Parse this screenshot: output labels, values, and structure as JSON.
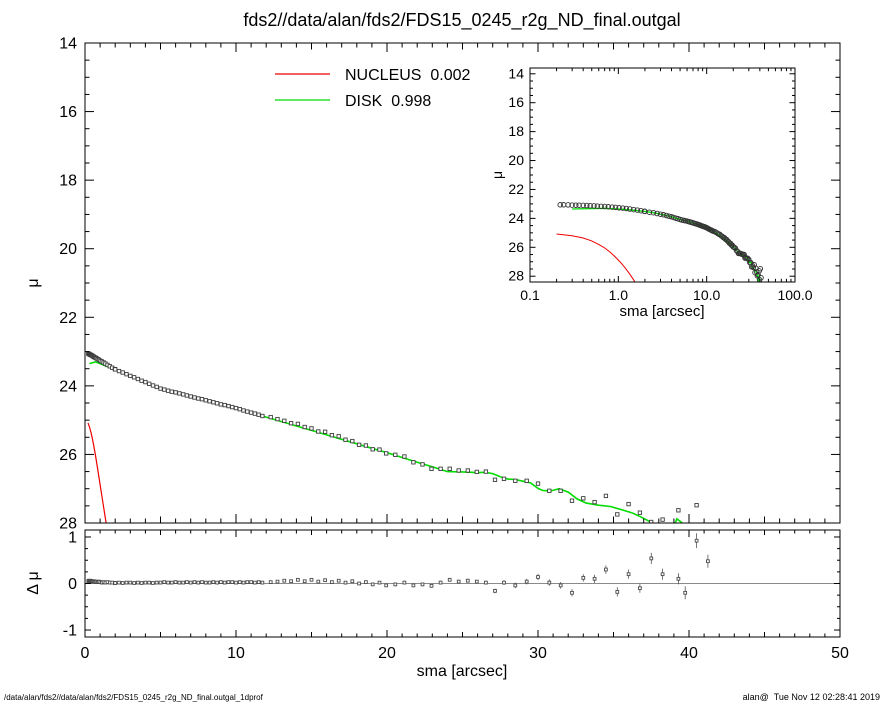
{
  "title": "fds2//data/alan/fds2/FDS15_0245_r2g_ND_final.outgal",
  "footer": {
    "left": "/data/alan/fds2//data/alan/fds2/FDS15_0245_r2g_ND_final.outgal_1dprof",
    "right": "alan@  Tue Nov 12 02:28:41 2019"
  },
  "colors": {
    "nucleus": "#ee0000",
    "disk": "#00dc00",
    "data_marker": "#3d3d3d",
    "residual_marker": "#4a4a4a",
    "axis": "#000000",
    "zero_line": "#8a8a8a"
  },
  "legend": {
    "nucleus": {
      "label": "NUCLEUS  0.002"
    },
    "disk": {
      "label": "DISK  0.998"
    }
  },
  "chart_data": {
    "type": "scatter",
    "title": "fds2//data/alan/fds2/FDS15_0245_r2g_ND_final.outgal",
    "panels": {
      "main": {
        "xlabel": "",
        "ylabel": "μ",
        "xlim": [
          0,
          50
        ],
        "ylim_top_bottom": [
          14,
          28
        ],
        "xticks": {
          "major": [
            0,
            10,
            20,
            30,
            40,
            50
          ],
          "mid_step": 5,
          "minor_step": 1,
          "show_labels": false
        },
        "yticks": {
          "major": [
            14,
            16,
            18,
            20,
            22,
            24,
            26,
            28
          ],
          "labels": [
            "14",
            "16",
            "18",
            "20",
            "22",
            "24",
            "26",
            "28"
          ],
          "minor_step": 0.5
        }
      },
      "inset": {
        "xlabel": "sma [arcsec]",
        "ylabel": "μ",
        "xscale": "log",
        "xlim": [
          0.1,
          100
        ],
        "ylim_top_bottom": [
          13.6,
          28.4
        ],
        "xticks": {
          "major": [
            0.1,
            1,
            10,
            100
          ],
          "labels": [
            "0.1",
            "1.0",
            "10.0",
            "100.0"
          ]
        },
        "yticks": {
          "major": [
            14,
            16,
            18,
            20,
            22,
            24,
            26,
            28
          ],
          "labels": [
            "14",
            "16",
            "18",
            "20",
            "22",
            "24",
            "26",
            "28"
          ],
          "minor_step": 0.5
        }
      },
      "residual": {
        "xlabel": "sma [arcsec]",
        "ylabel": "Δ μ",
        "xlim": [
          0,
          50
        ],
        "ylim_top_bottom": [
          1.15,
          -1.15
        ],
        "xticks": {
          "major": [
            0,
            10,
            20,
            30,
            40,
            50
          ],
          "labels": [
            "0",
            "10",
            "20",
            "30",
            "40",
            "50"
          ],
          "mid_step": 5,
          "minor_step": 1,
          "show_labels": true
        },
        "yticks": {
          "major": [
            1,
            0,
            -1
          ],
          "labels": [
            "1",
            "0",
            "-1"
          ],
          "minor_step": 0.25
        },
        "zero_line": 0
      }
    },
    "profile_points": [
      [
        0.22,
        23.06
      ],
      [
        0.24,
        23.06
      ],
      [
        0.27,
        23.07
      ],
      [
        0.3,
        23.08
      ],
      [
        0.33,
        23.09
      ],
      [
        0.36,
        23.09
      ],
      [
        0.4,
        23.1
      ],
      [
        0.44,
        23.11
      ],
      [
        0.48,
        23.12
      ],
      [
        0.53,
        23.14
      ],
      [
        0.58,
        23.15
      ],
      [
        0.64,
        23.17
      ],
      [
        0.7,
        23.18
      ],
      [
        0.77,
        23.2
      ],
      [
        0.85,
        23.22
      ],
      [
        0.93,
        23.24
      ],
      [
        1.02,
        23.27
      ],
      [
        1.12,
        23.29
      ],
      [
        1.23,
        23.32
      ],
      [
        1.35,
        23.35
      ],
      [
        1.49,
        23.39
      ],
      [
        1.64,
        23.43
      ],
      [
        1.8,
        23.47
      ],
      [
        1.98,
        23.51
      ],
      [
        2.0,
        23.52
      ],
      [
        2.25,
        23.57
      ],
      [
        2.5,
        23.61
      ],
      [
        2.75,
        23.66
      ],
      [
        3.0,
        23.71
      ],
      [
        3.25,
        23.75
      ],
      [
        3.5,
        23.8
      ],
      [
        3.75,
        23.85
      ],
      [
        4.0,
        23.89
      ],
      [
        4.25,
        23.94
      ],
      [
        4.5,
        23.99
      ],
      [
        4.75,
        24.03
      ],
      [
        5.0,
        24.08
      ],
      [
        5.25,
        24.11
      ],
      [
        5.5,
        24.14
      ],
      [
        5.75,
        24.17
      ],
      [
        6.0,
        24.19
      ],
      [
        6.25,
        24.22
      ],
      [
        6.5,
        24.25
      ],
      [
        6.75,
        24.28
      ],
      [
        7.0,
        24.31
      ],
      [
        7.25,
        24.34
      ],
      [
        7.5,
        24.37
      ],
      [
        7.75,
        24.39
      ],
      [
        8.0,
        24.42
      ],
      [
        8.25,
        24.45
      ],
      [
        8.5,
        24.48
      ],
      [
        8.75,
        24.51
      ],
      [
        9.0,
        24.54
      ],
      [
        9.25,
        24.56
      ],
      [
        9.5,
        24.59
      ],
      [
        9.75,
        24.62
      ],
      [
        10.0,
        24.65
      ],
      [
        10.25,
        24.68
      ],
      [
        10.5,
        24.72
      ],
      [
        10.75,
        24.75
      ],
      [
        11.0,
        24.78
      ],
      [
        11.25,
        24.81
      ],
      [
        11.5,
        24.84
      ],
      [
        11.75,
        24.88
      ],
      [
        12.3,
        24.91
      ],
      [
        12.75,
        24.97
      ],
      [
        13.2,
        25.02
      ],
      [
        13.65,
        25.09
      ],
      [
        14.1,
        25.11
      ],
      [
        14.55,
        25.2
      ],
      [
        15.0,
        25.24
      ],
      [
        15.45,
        25.33
      ],
      [
        15.9,
        25.34
      ],
      [
        16.35,
        25.44
      ],
      [
        16.8,
        25.47
      ],
      [
        17.25,
        25.57
      ],
      [
        17.7,
        25.61
      ],
      [
        18.15,
        25.72
      ],
      [
        18.6,
        25.74
      ],
      [
        19.05,
        25.85
      ],
      [
        19.5,
        25.86
      ],
      [
        19.95,
        25.97
      ],
      [
        20.55,
        26.01
      ],
      [
        21.15,
        26.06
      ],
      [
        21.75,
        26.23
      ],
      [
        22.35,
        26.29
      ],
      [
        22.95,
        26.42
      ],
      [
        23.55,
        26.42
      ],
      [
        24.15,
        26.42
      ],
      [
        24.75,
        26.47
      ],
      [
        25.35,
        26.47
      ],
      [
        25.95,
        26.51
      ],
      [
        26.55,
        26.5
      ],
      [
        27.15,
        26.74
      ],
      [
        27.75,
        26.71
      ],
      [
        28.5,
        26.77
      ],
      [
        29.25,
        26.77
      ],
      [
        30.0,
        26.85
      ],
      [
        30.75,
        27.06
      ],
      [
        31.5,
        27.06
      ],
      [
        32.25,
        27.35
      ],
      [
        33.0,
        27.28
      ],
      [
        33.75,
        27.39
      ],
      [
        34.5,
        27.21
      ],
      [
        35.25,
        27.75
      ],
      [
        36.0,
        27.45
      ],
      [
        36.75,
        27.7
      ],
      [
        37.5,
        27.97
      ],
      [
        38.25,
        27.9
      ],
      [
        39.3,
        27.63
      ],
      [
        39.75,
        28.25
      ],
      [
        40.5,
        27.48
      ],
      [
        41.25,
        28.1
      ]
    ],
    "disk_model": [
      [
        0.3,
        23.35
      ],
      [
        0.7,
        23.3
      ],
      [
        1.1,
        23.37
      ],
      [
        1.5,
        23.44
      ],
      [
        2.0,
        23.52
      ],
      [
        2.5,
        23.61
      ],
      [
        3.0,
        23.71
      ],
      [
        3.5,
        23.8
      ],
      [
        4.0,
        23.89
      ],
      [
        4.5,
        23.99
      ],
      [
        5.0,
        24.08
      ],
      [
        6.0,
        24.19
      ],
      [
        7.0,
        24.31
      ],
      [
        8.0,
        24.42
      ],
      [
        9.0,
        24.54
      ],
      [
        10.0,
        24.65
      ],
      [
        11.0,
        24.78
      ],
      [
        12.0,
        24.91
      ],
      [
        13.0,
        25.04
      ],
      [
        14.0,
        25.17
      ],
      [
        15.0,
        25.3
      ],
      [
        16.0,
        25.43
      ],
      [
        17.0,
        25.56
      ],
      [
        18.0,
        25.69
      ],
      [
        19.0,
        25.82
      ],
      [
        20.0,
        25.95
      ],
      [
        21.0,
        26.09
      ],
      [
        22.0,
        26.23
      ],
      [
        23.0,
        26.36
      ],
      [
        24.0,
        26.5
      ],
      [
        25.0,
        26.51
      ],
      [
        26.0,
        26.53
      ],
      [
        26.5,
        26.52
      ],
      [
        27.0,
        26.56
      ],
      [
        27.5,
        26.65
      ],
      [
        28.0,
        26.72
      ],
      [
        28.5,
        26.73
      ],
      [
        29.0,
        26.78
      ],
      [
        29.5,
        26.83
      ],
      [
        30.0,
        26.99
      ],
      [
        30.3,
        27.05
      ],
      [
        30.8,
        27.07
      ],
      [
        31.4,
        27.0
      ],
      [
        32.0,
        27.1
      ],
      [
        32.6,
        27.3
      ],
      [
        33.2,
        27.42
      ],
      [
        34.0,
        27.48
      ],
      [
        34.8,
        27.52
      ],
      [
        35.6,
        27.62
      ],
      [
        36.2,
        27.7
      ],
      [
        36.8,
        27.82
      ],
      [
        37.4,
        27.96
      ],
      [
        38.0,
        28.15
      ],
      [
        38.5,
        28.38
      ],
      [
        38.9,
        28.2
      ],
      [
        39.2,
        27.88
      ],
      [
        39.5,
        27.98
      ],
      [
        39.8,
        28.2
      ],
      [
        40.1,
        28.45
      ]
    ],
    "nucleus_model": [
      [
        0.2,
        25.08
      ],
      [
        0.3,
        25.2
      ],
      [
        0.4,
        25.36
      ],
      [
        0.5,
        25.56
      ],
      [
        0.6,
        25.8
      ],
      [
        0.7,
        26.05
      ],
      [
        0.8,
        26.32
      ],
      [
        0.9,
        26.6
      ],
      [
        1.0,
        26.88
      ],
      [
        1.1,
        27.16
      ],
      [
        1.2,
        27.44
      ],
      [
        1.3,
        27.72
      ],
      [
        1.4,
        28.0
      ],
      [
        1.5,
        28.28
      ],
      [
        1.6,
        28.56
      ]
    ],
    "residual_points": [
      [
        0.22,
        0.05,
        0.01
      ],
      [
        0.24,
        0.06,
        0.01
      ],
      [
        0.27,
        0.05,
        0.01
      ],
      [
        0.3,
        0.04,
        0.01
      ],
      [
        0.33,
        0.05,
        0.01
      ],
      [
        0.36,
        0.06,
        0.01
      ],
      [
        0.4,
        0.05,
        0.01
      ],
      [
        0.44,
        0.04,
        0.01
      ],
      [
        0.48,
        0.05,
        0.01
      ],
      [
        0.53,
        0.04,
        0.01
      ],
      [
        0.58,
        0.05,
        0.01
      ],
      [
        0.64,
        0.04,
        0.01
      ],
      [
        0.7,
        0.03,
        0.01
      ],
      [
        0.77,
        0.04,
        0.01
      ],
      [
        0.85,
        0.03,
        0.01
      ],
      [
        0.93,
        0.04,
        0.01
      ],
      [
        1.02,
        0.03,
        0.01
      ],
      [
        1.12,
        0.02,
        0.01
      ],
      [
        1.23,
        0.03,
        0.01
      ],
      [
        1.35,
        0.02,
        0.01
      ],
      [
        1.49,
        0.03,
        0.01
      ],
      [
        1.64,
        0.02,
        0.01
      ],
      [
        1.8,
        0.02,
        0.01
      ],
      [
        1.98,
        0.01,
        0.01
      ],
      [
        2.0,
        0.01,
        0.01
      ],
      [
        2.25,
        0.02,
        0.01
      ],
      [
        2.5,
        0.01,
        0.01
      ],
      [
        2.75,
        0.02,
        0.01
      ],
      [
        3.0,
        0.02,
        0.01
      ],
      [
        3.25,
        0.01,
        0.01
      ],
      [
        3.5,
        0.02,
        0.01
      ],
      [
        3.75,
        0.01,
        0.01
      ],
      [
        4.0,
        0.02,
        0.01
      ],
      [
        4.25,
        0.02,
        0.01
      ],
      [
        4.5,
        0.01,
        0.01
      ],
      [
        4.75,
        0.02,
        0.01
      ],
      [
        5.0,
        0.02,
        0.01
      ],
      [
        5.25,
        0.03,
        0.01
      ],
      [
        5.5,
        0.02,
        0.01
      ],
      [
        5.75,
        0.02,
        0.01
      ],
      [
        6.0,
        0.03,
        0.01
      ],
      [
        6.25,
        0.02,
        0.01
      ],
      [
        6.5,
        0.02,
        0.01
      ],
      [
        6.75,
        0.03,
        0.01
      ],
      [
        7.0,
        0.02,
        0.01
      ],
      [
        7.25,
        0.03,
        0.01
      ],
      [
        7.5,
        0.02,
        0.01
      ],
      [
        7.75,
        0.03,
        0.01
      ],
      [
        8.0,
        0.02,
        0.01
      ],
      [
        8.25,
        0.02,
        0.01
      ],
      [
        8.5,
        0.03,
        0.01
      ],
      [
        8.75,
        0.02,
        0.01
      ],
      [
        9.0,
        0.03,
        0.01
      ],
      [
        9.25,
        0.02,
        0.01
      ],
      [
        9.5,
        0.03,
        0.01
      ],
      [
        9.75,
        0.03,
        0.01
      ],
      [
        10.0,
        0.02,
        0.01
      ],
      [
        10.25,
        0.03,
        0.01
      ],
      [
        10.5,
        0.02,
        0.01
      ],
      [
        10.75,
        0.03,
        0.01
      ],
      [
        11.0,
        0.03,
        0.01
      ],
      [
        11.25,
        0.02,
        0.01
      ],
      [
        11.5,
        0.03,
        0.01
      ],
      [
        11.75,
        0.02,
        0.01
      ],
      [
        12.3,
        0.03,
        0.02
      ],
      [
        12.75,
        0.04,
        0.02
      ],
      [
        13.2,
        0.06,
        0.02
      ],
      [
        13.65,
        0.05,
        0.02
      ],
      [
        14.1,
        0.08,
        0.02
      ],
      [
        14.55,
        0.05,
        0.02
      ],
      [
        15.0,
        0.08,
        0.02
      ],
      [
        15.45,
        0.04,
        0.02
      ],
      [
        15.9,
        0.07,
        0.02
      ],
      [
        16.35,
        0.03,
        0.02
      ],
      [
        16.8,
        0.06,
        0.02
      ],
      [
        17.25,
        0.02,
        0.02
      ],
      [
        17.7,
        0.05,
        0.02
      ],
      [
        18.15,
        0.0,
        0.02
      ],
      [
        18.6,
        0.03,
        0.02
      ],
      [
        19.05,
        -0.02,
        0.02
      ],
      [
        19.5,
        0.02,
        0.02
      ],
      [
        19.95,
        -0.04,
        0.02
      ],
      [
        20.55,
        -0.02,
        0.04
      ],
      [
        21.15,
        0.02,
        0.04
      ],
      [
        21.75,
        -0.04,
        0.04
      ],
      [
        22.35,
        -0.02,
        0.04
      ],
      [
        22.95,
        -0.05,
        0.04
      ],
      [
        23.55,
        0.02,
        0.04
      ],
      [
        24.15,
        0.08,
        0.04
      ],
      [
        24.75,
        0.04,
        0.04
      ],
      [
        25.35,
        0.06,
        0.04
      ],
      [
        25.95,
        0.04,
        0.04
      ],
      [
        26.55,
        0.02,
        0.04
      ],
      [
        27.15,
        -0.16,
        0.05
      ],
      [
        27.75,
        0.02,
        0.05
      ],
      [
        28.5,
        -0.04,
        0.06
      ],
      [
        29.25,
        0.04,
        0.06
      ],
      [
        30.0,
        0.14,
        0.07
      ],
      [
        30.75,
        0.02,
        0.07
      ],
      [
        31.5,
        -0.04,
        0.07
      ],
      [
        32.25,
        -0.2,
        0.08
      ],
      [
        33.0,
        0.12,
        0.08
      ],
      [
        33.75,
        0.1,
        0.09
      ],
      [
        34.5,
        0.3,
        0.09
      ],
      [
        35.25,
        -0.18,
        0.1
      ],
      [
        36.0,
        0.2,
        0.1
      ],
      [
        36.75,
        -0.1,
        0.1
      ],
      [
        37.5,
        0.54,
        0.12
      ],
      [
        38.25,
        0.2,
        0.12
      ],
      [
        39.3,
        0.1,
        0.12
      ],
      [
        39.75,
        -0.2,
        0.14
      ],
      [
        40.5,
        0.92,
        0.16
      ],
      [
        41.25,
        0.48,
        0.14
      ]
    ]
  }
}
